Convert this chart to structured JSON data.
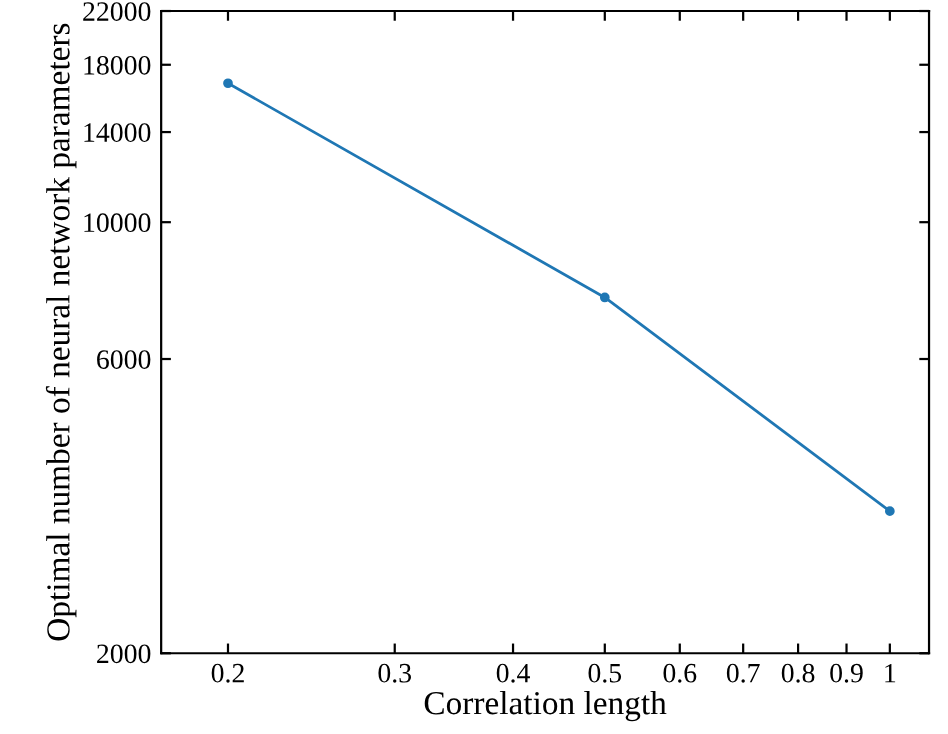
{
  "chart_data": {
    "type": "line",
    "xlabel": "Correlation length",
    "ylabel": "Optimal number of neural network parameters",
    "x": [
      0.2,
      0.5,
      1
    ],
    "series": [
      {
        "color": "#1f77b4",
        "values": [
          16800,
          7550,
          3400
        ]
      }
    ],
    "log": "xy",
    "marker": "circle",
    "line_style": "solid",
    "grid": false,
    "legend": false,
    "xlim": [
      0.17,
      1.1
    ],
    "xticks": [
      0.2,
      0.3,
      0.4,
      0.5,
      0.6,
      0.7,
      0.8,
      0.9,
      1
    ],
    "ylim": [
      2000,
      22000
    ],
    "yticks": [
      2000,
      6000,
      10000,
      14000,
      18000,
      22000
    ]
  }
}
